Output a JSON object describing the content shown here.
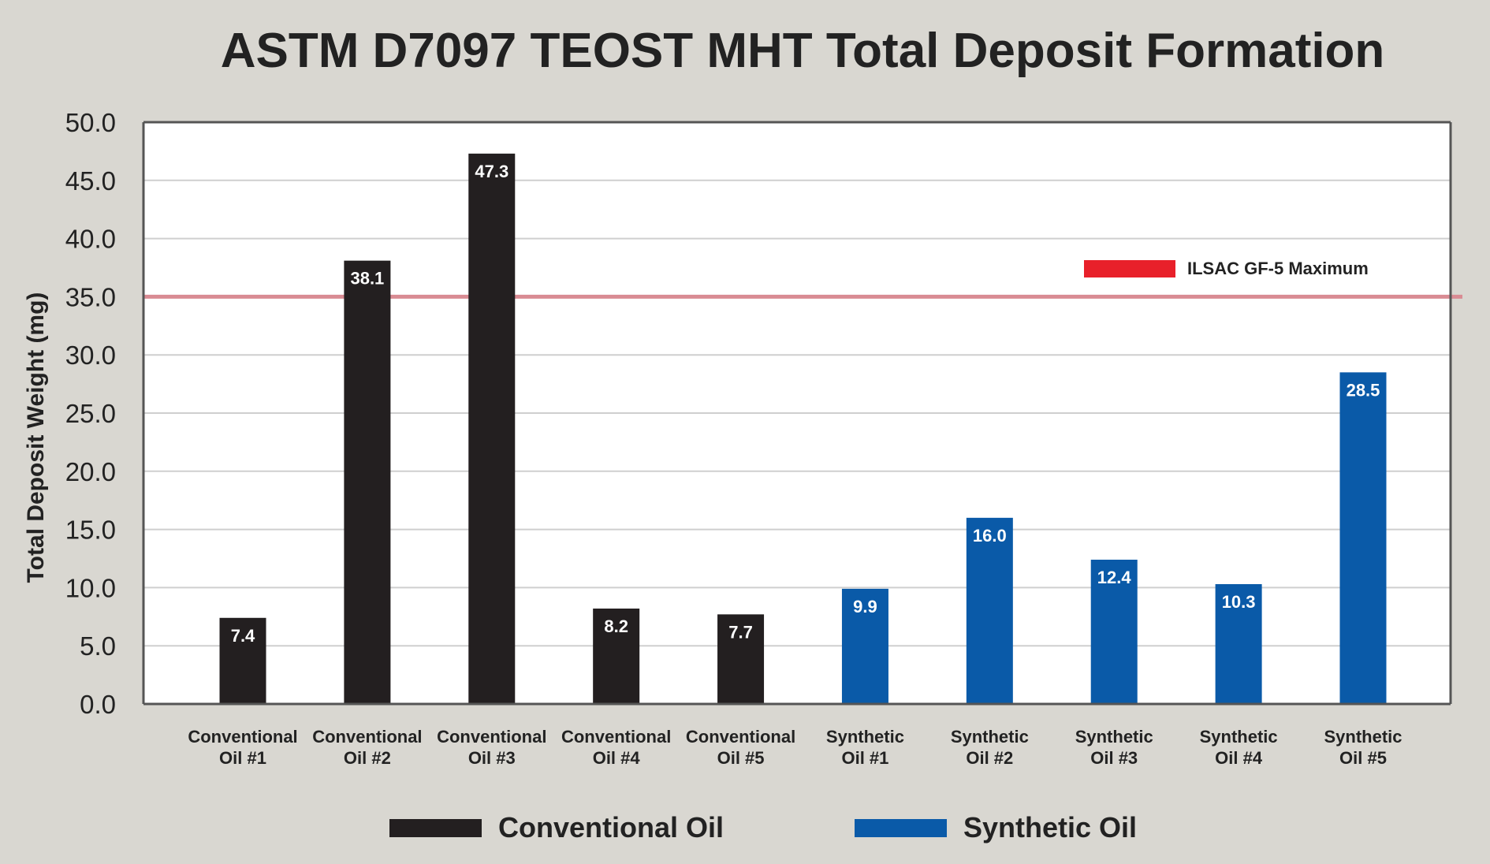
{
  "chart_data": {
    "type": "bar",
    "title": "ASTM D7097 TEOST MHT Total Deposit Formation",
    "ylabel": "Total Deposit Weight (mg)",
    "xlabel": "",
    "ylim": [
      0,
      50
    ],
    "yticks": [
      "0.0",
      "5.0",
      "10.0",
      "15.0",
      "20.0",
      "25.0",
      "30.0",
      "35.0",
      "40.0",
      "45.0",
      "50.0"
    ],
    "grid": true,
    "categories": [
      [
        "Conventional",
        "Oil #1"
      ],
      [
        "Conventional",
        "Oil #2"
      ],
      [
        "Conventional",
        "Oil #3"
      ],
      [
        "Conventional",
        "Oil #4"
      ],
      [
        "Conventional",
        "Oil #5"
      ],
      [
        "Synthetic",
        "Oil #1"
      ],
      [
        "Synthetic",
        "Oil #2"
      ],
      [
        "Synthetic",
        "Oil #3"
      ],
      [
        "Synthetic",
        "Oil #4"
      ],
      [
        "Synthetic",
        "Oil #5"
      ]
    ],
    "values": [
      7.4,
      38.1,
      47.3,
      8.2,
      7.7,
      9.9,
      16.0,
      12.4,
      10.3,
      28.5
    ],
    "data_labels": [
      "7.4",
      "38.1",
      "47.3",
      "8.2",
      "7.7",
      "9.9",
      "16.0",
      "12.4",
      "10.3",
      "28.5"
    ],
    "bar_groups": [
      0,
      0,
      0,
      0,
      0,
      1,
      1,
      1,
      1,
      1
    ],
    "series": [
      {
        "name": "Conventional Oil",
        "color": "#231f20"
      },
      {
        "name": "Synthetic Oil",
        "color": "#0a5aa8"
      }
    ],
    "reference_line": {
      "value": 35,
      "label": "ILSAC GF-5 Maximum",
      "color": "#e8202a"
    },
    "legend_position": "bottom"
  }
}
